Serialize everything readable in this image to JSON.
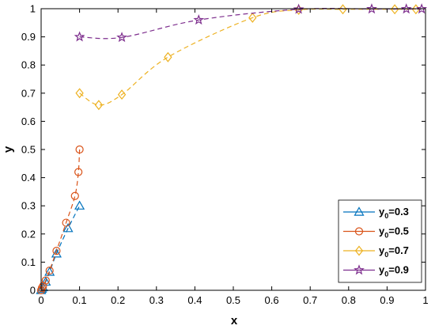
{
  "chart_data": {
    "type": "line",
    "xlabel": "x",
    "ylabel": "y",
    "xlim": [
      0,
      1
    ],
    "ylim": [
      0,
      1
    ],
    "xticks": [
      "0",
      "0.1",
      "0.2",
      "0.3",
      "0.4",
      "0.5",
      "0.6",
      "0.7",
      "0.8",
      "0.9",
      "1"
    ],
    "yticks": [
      "0",
      "0.1",
      "0.2",
      "0.3",
      "0.4",
      "0.5",
      "0.6",
      "0.7",
      "0.8",
      "0.9",
      "1"
    ],
    "grid": false,
    "legend_position": "bottom-right",
    "line_style": "dashed",
    "series": [
      {
        "name": "y0=0.3",
        "name_main": "y",
        "name_sub": "0",
        "name_rest": "=0.3",
        "color": "#0072BD",
        "marker": "triangle",
        "x": [
          0.0,
          0.002,
          0.005,
          0.012,
          0.022,
          0.04,
          0.07,
          0.1
        ],
        "y": [
          0.0,
          0.005,
          0.01,
          0.03,
          0.065,
          0.13,
          0.22,
          0.3
        ]
      },
      {
        "name": "y0=0.5",
        "name_main": "y",
        "name_sub": "0",
        "name_rest": "=0.5",
        "color": "#D95319",
        "marker": "circle",
        "x": [
          0.0,
          0.002,
          0.005,
          0.012,
          0.022,
          0.04,
          0.065,
          0.088,
          0.097,
          0.1
        ],
        "y": [
          0.0,
          0.008,
          0.015,
          0.035,
          0.07,
          0.14,
          0.24,
          0.335,
          0.42,
          0.5
        ]
      },
      {
        "name": "y0=0.7",
        "name_main": "y",
        "name_sub": "0",
        "name_rest": "=0.7",
        "color": "#EDB120",
        "marker": "diamond",
        "x": [
          0.1,
          0.15,
          0.21,
          0.33,
          0.55,
          0.67,
          0.785,
          0.92,
          0.975
        ],
        "y": [
          0.7,
          0.658,
          0.695,
          0.828,
          0.968,
          0.996,
          0.998,
          0.998,
          0.998
        ]
      },
      {
        "name": "y0=0.9",
        "name_main": "y",
        "name_sub": "0",
        "name_rest": "=0.9",
        "color": "#7E2F8E",
        "marker": "star",
        "x": [
          0.1,
          0.21,
          0.41,
          0.67,
          0.86,
          0.95,
          0.99
        ],
        "y": [
          0.9,
          0.898,
          0.96,
          0.998,
          0.999,
          0.999,
          0.999
        ]
      }
    ]
  }
}
